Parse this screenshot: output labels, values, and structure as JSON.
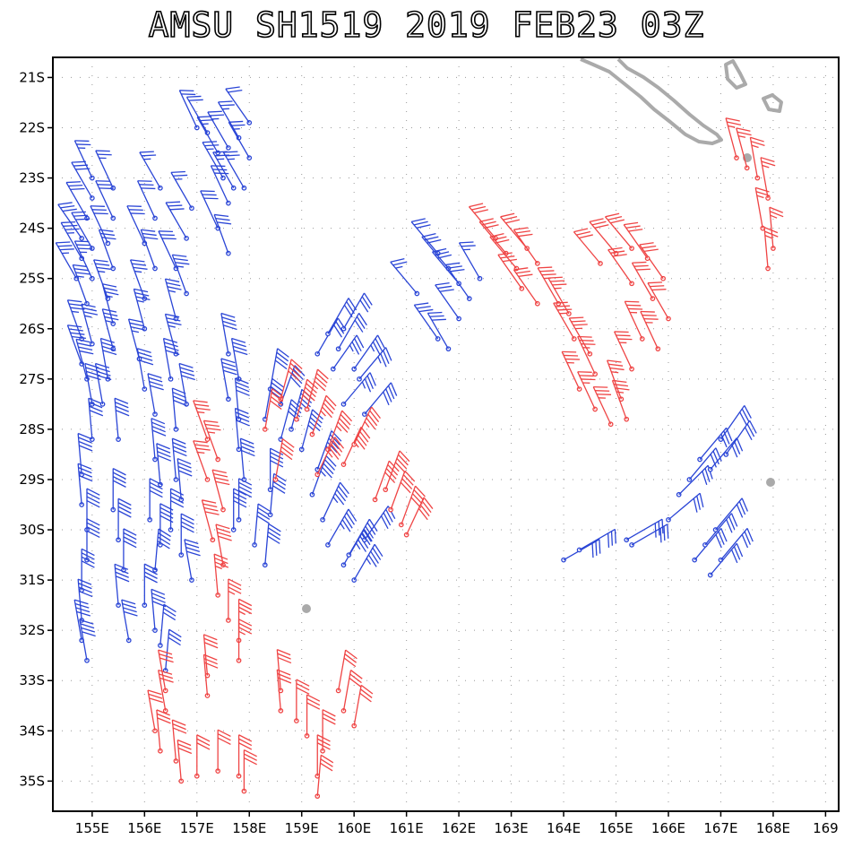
{
  "title": "AMSU SH1519 2019 FEB23 03Z",
  "map": {
    "lon_range": [
      154.25,
      169.25
    ],
    "lat_range": [
      -35.6,
      -20.6
    ],
    "lat_labels": [
      "21S",
      "22S",
      "23S",
      "24S",
      "25S",
      "26S",
      "27S",
      "28S",
      "29S",
      "30S",
      "31S",
      "32S",
      "33S",
      "34S",
      "35S"
    ],
    "lon_labels": [
      "155E",
      "156E",
      "157E",
      "158E",
      "159E",
      "160E",
      "161E",
      "162E",
      "163E",
      "164E",
      "165E",
      "166E",
      "167E",
      "168E",
      "169"
    ],
    "grid": "dotted",
    "land_color": "#aaaaaa",
    "colors": {
      "blue": "#2a45d6",
      "red": "#ef4444"
    }
  },
  "wind_barbs": {
    "note": "spd in knots",
    "blue": [
      [
        155.0,
        -23.0,
        335,
        25
      ],
      [
        155.0,
        -23.4,
        330,
        30
      ],
      [
        154.9,
        -23.8,
        330,
        30
      ],
      [
        154.8,
        -24.2,
        325,
        30
      ],
      [
        154.8,
        -24.6,
        330,
        35
      ],
      [
        154.7,
        -25.0,
        330,
        35
      ],
      [
        155.0,
        -24.4,
        330,
        30
      ],
      [
        155.0,
        -25.0,
        335,
        35
      ],
      [
        154.9,
        -25.5,
        340,
        35
      ],
      [
        154.8,
        -26.2,
        340,
        35
      ],
      [
        154.8,
        -26.7,
        340,
        40
      ],
      [
        154.9,
        -27.0,
        345,
        40
      ],
      [
        155.0,
        -26.3,
        345,
        35
      ],
      [
        155.0,
        -27.5,
        350,
        40
      ],
      [
        155.0,
        -28.2,
        355,
        40
      ],
      [
        154.8,
        -28.9,
        355,
        40
      ],
      [
        154.8,
        -29.5,
        355,
        40
      ],
      [
        154.9,
        -30.0,
        0,
        40
      ],
      [
        154.9,
        -30.6,
        0,
        40
      ],
      [
        154.8,
        -31.2,
        0,
        40
      ],
      [
        154.8,
        -31.8,
        355,
        40
      ],
      [
        154.8,
        -32.2,
        350,
        40
      ],
      [
        154.9,
        -32.6,
        350,
        40
      ],
      [
        155.4,
        -23.2,
        335,
        25
      ],
      [
        155.4,
        -23.8,
        335,
        30
      ],
      [
        155.3,
        -24.3,
        335,
        30
      ],
      [
        155.4,
        -24.8,
        340,
        30
      ],
      [
        155.3,
        -25.4,
        340,
        35
      ],
      [
        155.4,
        -25.9,
        345,
        35
      ],
      [
        155.4,
        -26.4,
        345,
        35
      ],
      [
        155.3,
        -27.0,
        350,
        40
      ],
      [
        155.2,
        -27.5,
        350,
        40
      ],
      [
        155.5,
        -28.2,
        355,
        40
      ],
      [
        155.4,
        -29.6,
        0,
        40
      ],
      [
        155.5,
        -30.2,
        0,
        40
      ],
      [
        155.6,
        -30.8,
        0,
        40
      ],
      [
        155.5,
        -31.5,
        355,
        40
      ],
      [
        155.7,
        -32.2,
        350,
        40
      ],
      [
        156.3,
        -23.2,
        330,
        25
      ],
      [
        156.2,
        -23.8,
        335,
        30
      ],
      [
        156.0,
        -24.3,
        335,
        30
      ],
      [
        156.2,
        -24.8,
        340,
        30
      ],
      [
        156.0,
        -25.4,
        340,
        35
      ],
      [
        156.0,
        -26.0,
        345,
        35
      ],
      [
        155.9,
        -26.6,
        345,
        35
      ],
      [
        156.0,
        -27.2,
        350,
        40
      ],
      [
        156.2,
        -27.7,
        350,
        40
      ],
      [
        156.2,
        -28.6,
        355,
        40
      ],
      [
        156.3,
        -29.1,
        355,
        40
      ],
      [
        156.1,
        -29.8,
        0,
        40
      ],
      [
        156.3,
        -30.3,
        0,
        40
      ],
      [
        156.2,
        -30.8,
        5,
        40
      ],
      [
        156.0,
        -31.5,
        0,
        40
      ],
      [
        156.2,
        -32.0,
        355,
        40
      ],
      [
        156.3,
        -32.3,
        5,
        30
      ],
      [
        156.4,
        -32.8,
        5,
        30
      ],
      [
        156.9,
        -23.6,
        330,
        25
      ],
      [
        156.8,
        -24.2,
        330,
        30
      ],
      [
        156.6,
        -24.8,
        335,
        30
      ],
      [
        156.8,
        -25.3,
        340,
        35
      ],
      [
        156.6,
        -25.8,
        345,
        35
      ],
      [
        156.6,
        -26.5,
        345,
        35
      ],
      [
        156.5,
        -27.0,
        350,
        40
      ],
      [
        156.8,
        -27.5,
        350,
        40
      ],
      [
        156.6,
        -28.0,
        355,
        40
      ],
      [
        156.6,
        -29.0,
        355,
        40
      ],
      [
        156.7,
        -29.4,
        355,
        40
      ],
      [
        156.5,
        -30.0,
        0,
        40
      ],
      [
        156.7,
        -30.5,
        0,
        40
      ],
      [
        156.9,
        -31.0,
        350,
        40
      ],
      [
        157.0,
        -22.0,
        335,
        20
      ],
      [
        157.2,
        -22.1,
        330,
        20
      ],
      [
        157.4,
        -22.5,
        330,
        25
      ],
      [
        157.6,
        -22.4,
        330,
        25
      ],
      [
        157.8,
        -22.2,
        330,
        25
      ],
      [
        158.0,
        -21.9,
        325,
        20
      ],
      [
        158.0,
        -22.6,
        330,
        25
      ],
      [
        157.5,
        -23.0,
        330,
        25
      ],
      [
        157.7,
        -23.2,
        330,
        25
      ],
      [
        157.9,
        -23.2,
        330,
        25
      ],
      [
        157.6,
        -23.5,
        335,
        30
      ],
      [
        157.4,
        -24.0,
        335,
        30
      ],
      [
        157.6,
        -24.5,
        340,
        30
      ],
      [
        157.6,
        -26.5,
        350,
        40
      ],
      [
        157.8,
        -27.0,
        350,
        40
      ],
      [
        157.6,
        -27.4,
        350,
        40
      ],
      [
        157.8,
        -27.8,
        355,
        40
      ],
      [
        157.8,
        -28.4,
        355,
        40
      ],
      [
        157.9,
        -29.0,
        355,
        40
      ],
      [
        157.8,
        -29.8,
        0,
        40
      ],
      [
        157.7,
        -30.0,
        0,
        40
      ],
      [
        158.1,
        -30.3,
        5,
        40
      ],
      [
        158.3,
        -30.7,
        5,
        40
      ],
      [
        158.4,
        -29.2,
        0,
        40
      ],
      [
        158.4,
        -29.7,
        5,
        40
      ],
      [
        158.6,
        -27.5,
        20,
        40
      ],
      [
        158.8,
        -28.0,
        15,
        40
      ],
      [
        159.0,
        -28.4,
        15,
        45
      ],
      [
        159.3,
        -28.8,
        20,
        45
      ],
      [
        159.2,
        -29.3,
        20,
        45
      ],
      [
        159.4,
        -29.8,
        25,
        45
      ],
      [
        159.5,
        -30.3,
        30,
        45
      ],
      [
        159.8,
        -30.7,
        30,
        45
      ],
      [
        160.0,
        -31.0,
        30,
        45
      ],
      [
        159.9,
        -30.5,
        30,
        45
      ],
      [
        160.2,
        -30.2,
        35,
        40
      ],
      [
        158.4,
        -27.2,
        10,
        40
      ],
      [
        158.3,
        -27.8,
        10,
        40
      ],
      [
        158.6,
        -28.2,
        15,
        40
      ],
      [
        159.3,
        -26.5,
        30,
        30
      ],
      [
        159.5,
        -26.1,
        30,
        30
      ],
      [
        159.8,
        -26.0,
        30,
        30
      ],
      [
        159.7,
        -26.4,
        30,
        30
      ],
      [
        159.6,
        -26.8,
        35,
        35
      ],
      [
        160.0,
        -26.8,
        35,
        35
      ],
      [
        160.1,
        -27.0,
        40,
        35
      ],
      [
        159.8,
        -27.5,
        40,
        35
      ],
      [
        160.2,
        -27.7,
        40,
        40
      ],
      [
        161.2,
        -25.3,
        320,
        25
      ],
      [
        161.6,
        -24.5,
        320,
        30
      ],
      [
        161.8,
        -24.8,
        320,
        30
      ],
      [
        162.0,
        -25.1,
        320,
        30
      ],
      [
        162.2,
        -25.4,
        325,
        30
      ],
      [
        162.0,
        -25.8,
        325,
        30
      ],
      [
        161.6,
        -26.2,
        325,
        30
      ],
      [
        161.8,
        -26.4,
        330,
        30
      ],
      [
        162.4,
        -25.0,
        330,
        25
      ],
      [
        164.0,
        -30.6,
        60,
        30
      ],
      [
        164.3,
        -30.4,
        60,
        30
      ],
      [
        165.2,
        -30.2,
        60,
        30
      ],
      [
        165.3,
        -30.3,
        60,
        30
      ],
      [
        166.0,
        -29.8,
        50,
        30
      ],
      [
        166.2,
        -29.3,
        45,
        30
      ],
      [
        166.4,
        -29.0,
        40,
        30
      ],
      [
        166.6,
        -28.6,
        40,
        30
      ],
      [
        166.8,
        -28.8,
        40,
        30
      ],
      [
        167.0,
        -28.2,
        35,
        30
      ],
      [
        167.1,
        -28.5,
        35,
        30
      ],
      [
        166.5,
        -30.6,
        40,
        30
      ],
      [
        166.7,
        -30.3,
        40,
        30
      ],
      [
        166.9,
        -30.0,
        40,
        30
      ],
      [
        167.0,
        -30.6,
        40,
        30
      ],
      [
        166.8,
        -30.9,
        40,
        30
      ]
    ],
    "red": [
      [
        157.2,
        -28.2,
        340,
        35
      ],
      [
        157.4,
        -28.6,
        340,
        35
      ],
      [
        157.2,
        -29.0,
        340,
        35
      ],
      [
        157.5,
        -29.6,
        345,
        40
      ],
      [
        157.3,
        -30.2,
        345,
        40
      ],
      [
        157.5,
        -30.7,
        350,
        40
      ],
      [
        157.4,
        -31.3,
        355,
        35
      ],
      [
        157.6,
        -31.8,
        0,
        35
      ],
      [
        157.8,
        -32.2,
        0,
        35
      ],
      [
        157.8,
        -32.6,
        0,
        35
      ],
      [
        157.2,
        -32.9,
        355,
        30
      ],
      [
        157.2,
        -33.3,
        355,
        30
      ],
      [
        156.4,
        -33.2,
        350,
        30
      ],
      [
        156.4,
        -33.6,
        350,
        30
      ],
      [
        156.2,
        -34.0,
        350,
        30
      ],
      [
        156.3,
        -34.4,
        355,
        30
      ],
      [
        156.6,
        -34.6,
        355,
        30
      ],
      [
        156.7,
        -35.0,
        355,
        30
      ],
      [
        157.0,
        -34.9,
        0,
        30
      ],
      [
        157.4,
        -34.8,
        0,
        30
      ],
      [
        157.8,
        -34.9,
        0,
        30
      ],
      [
        157.9,
        -35.2,
        0,
        30
      ],
      [
        158.6,
        -27.4,
        15,
        40
      ],
      [
        158.9,
        -27.8,
        15,
        45
      ],
      [
        159.2,
        -28.1,
        20,
        45
      ],
      [
        159.5,
        -28.4,
        20,
        45
      ],
      [
        159.8,
        -28.7,
        25,
        45
      ],
      [
        160.0,
        -28.3,
        25,
        45
      ],
      [
        159.3,
        -28.9,
        25,
        45
      ],
      [
        159.1,
        -27.6,
        15,
        40
      ],
      [
        158.3,
        -28.0,
        10,
        40
      ],
      [
        158.5,
        -29.0,
        10,
        40
      ],
      [
        160.4,
        -29.4,
        20,
        40
      ],
      [
        160.7,
        -29.6,
        20,
        40
      ],
      [
        160.9,
        -29.9,
        20,
        40
      ],
      [
        161.0,
        -30.1,
        25,
        40
      ],
      [
        160.6,
        -29.2,
        20,
        40
      ],
      [
        158.6,
        -33.2,
        355,
        30
      ],
      [
        158.6,
        -33.6,
        355,
        30
      ],
      [
        158.9,
        -33.8,
        0,
        30
      ],
      [
        159.1,
        -34.1,
        0,
        30
      ],
      [
        159.4,
        -34.4,
        0,
        30
      ],
      [
        159.3,
        -34.9,
        0,
        30
      ],
      [
        159.3,
        -35.3,
        5,
        30
      ],
      [
        159.7,
        -33.2,
        10,
        30
      ],
      [
        159.8,
        -33.6,
        10,
        30
      ],
      [
        160.0,
        -33.9,
        10,
        30
      ],
      [
        162.7,
        -24.2,
        320,
        30
      ],
      [
        162.9,
        -24.5,
        320,
        30
      ],
      [
        163.1,
        -24.8,
        320,
        30
      ],
      [
        163.3,
        -24.4,
        320,
        30
      ],
      [
        163.5,
        -24.7,
        325,
        30
      ],
      [
        163.2,
        -25.2,
        325,
        30
      ],
      [
        163.5,
        -25.5,
        325,
        30
      ],
      [
        163.9,
        -25.5,
        330,
        35
      ],
      [
        164.1,
        -25.7,
        330,
        35
      ],
      [
        164.2,
        -26.2,
        330,
        35
      ],
      [
        164.5,
        -26.5,
        330,
        35
      ],
      [
        164.6,
        -26.9,
        335,
        35
      ],
      [
        164.3,
        -27.2,
        335,
        35
      ],
      [
        164.6,
        -27.6,
        335,
        35
      ],
      [
        164.9,
        -27.9,
        335,
        35
      ],
      [
        165.1,
        -27.4,
        340,
        35
      ],
      [
        165.2,
        -27.8,
        340,
        35
      ],
      [
        165.3,
        -26.8,
        335,
        35
      ],
      [
        165.5,
        -26.2,
        335,
        35
      ],
      [
        165.8,
        -26.4,
        335,
        35
      ],
      [
        166.0,
        -25.8,
        330,
        30
      ],
      [
        165.7,
        -25.4,
        330,
        30
      ],
      [
        165.9,
        -25.0,
        325,
        30
      ],
      [
        165.6,
        -24.6,
        325,
        30
      ],
      [
        165.3,
        -24.4,
        320,
        30
      ],
      [
        165.0,
        -24.5,
        320,
        30
      ],
      [
        164.7,
        -24.7,
        320,
        30
      ],
      [
        165.3,
        -25.1,
        325,
        30
      ],
      [
        167.3,
        -22.6,
        345,
        25
      ],
      [
        167.5,
        -22.8,
        345,
        25
      ],
      [
        167.7,
        -23.0,
        350,
        25
      ],
      [
        167.9,
        -23.4,
        350,
        25
      ],
      [
        167.8,
        -24.0,
        350,
        25
      ],
      [
        168.0,
        -24.4,
        355,
        25
      ],
      [
        167.9,
        -24.8,
        355,
        25
      ]
    ]
  }
}
